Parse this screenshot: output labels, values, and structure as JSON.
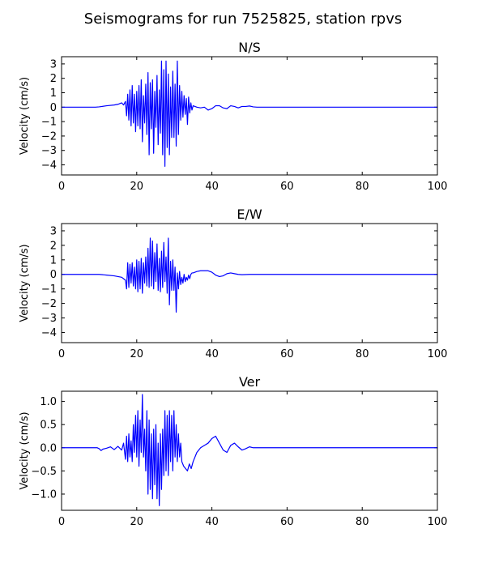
{
  "figure": {
    "title": "Seismograms for run 7525825, station rpvs"
  },
  "chart_data": [
    {
      "type": "line",
      "title": "N/S",
      "xlabel": "",
      "ylabel": "Velocity (cm/s)",
      "xlim": [
        0,
        100
      ],
      "ylim": [
        -4.7,
        3.5
      ],
      "xticks": [
        0,
        20,
        40,
        60,
        80,
        100
      ],
      "yticks": [
        3,
        2,
        1,
        0,
        -1,
        -2,
        -3,
        -4
      ],
      "ytick_labels": [
        "3",
        "2",
        "1",
        "0",
        "−1",
        "−2",
        "−3",
        "−4"
      ],
      "grid": false,
      "line_color": "#0000ff",
      "series": [
        {
          "x": [
            0,
            5,
            9,
            10,
            12,
            14,
            15,
            16,
            16.5,
            17,
            17.3,
            17.6,
            17.9,
            18.2,
            18.5,
            18.8,
            19.1,
            19.4,
            19.7,
            20,
            20.3,
            20.6,
            20.9,
            21.2,
            21.5,
            21.8,
            22.1,
            22.4,
            22.7,
            23,
            23.3,
            23.6,
            23.9,
            24.2,
            24.5,
            24.8,
            25.1,
            25.4,
            25.7,
            26,
            26.3,
            26.6,
            26.9,
            27.2,
            27.5,
            27.8,
            28.1,
            28.4,
            28.7,
            29,
            29.3,
            29.6,
            29.9,
            30.2,
            30.5,
            30.8,
            31.1,
            31.4,
            31.7,
            32,
            32.3,
            32.6,
            32.9,
            33.2,
            33.5,
            33.8,
            34.1,
            34.4,
            34.7,
            35,
            35.5,
            36,
            37,
            38,
            39,
            40,
            41,
            42,
            43,
            44,
            45,
            46,
            47,
            48,
            49,
            50,
            51,
            52,
            53,
            55,
            60,
            70,
            80,
            90,
            100
          ],
          "y": [
            0,
            0,
            0,
            0.02,
            0.1,
            0.15,
            0.2,
            0.3,
            0.15,
            0.4,
            -0.6,
            0.9,
            -0.9,
            1.2,
            -1.3,
            1.5,
            -1.1,
            0.9,
            -1.7,
            1.1,
            -1.3,
            1.5,
            -1.5,
            1.9,
            -2.4,
            0.8,
            -1.1,
            1.6,
            -1.9,
            2.4,
            -3.3,
            1.7,
            -1.5,
            1.9,
            -3.2,
            1.1,
            -1.4,
            2.2,
            -2.6,
            1.2,
            -1.8,
            3.2,
            -3.3,
            2.6,
            -4.1,
            3.2,
            -2.8,
            2.3,
            -3.3,
            1.4,
            -2.1,
            2.5,
            -2.1,
            1.6,
            -2.7,
            3.2,
            -1.9,
            1.5,
            -0.9,
            1.1,
            -0.7,
            0.8,
            -0.5,
            0.6,
            -1.2,
            0.7,
            -0.4,
            0.3,
            -0.2,
            0.1,
            0.05,
            0,
            -0.05,
            0,
            -0.2,
            -0.1,
            0.1,
            0.1,
            -0.05,
            -0.1,
            0.1,
            0.05,
            -0.05,
            0.05,
            0.05,
            0.08,
            0.02,
            0,
            0,
            0,
            0,
            0,
            0,
            0,
            0
          ]
        }
      ]
    },
    {
      "type": "line",
      "title": "E/W",
      "xlabel": "",
      "ylabel": "Velocity (cm/s)",
      "xlim": [
        0,
        100
      ],
      "ylim": [
        -4.7,
        3.5
      ],
      "xticks": [
        0,
        20,
        40,
        60,
        80,
        100
      ],
      "yticks": [
        3,
        2,
        1,
        0,
        -1,
        -2,
        -3,
        -4
      ],
      "ytick_labels": [
        "3",
        "2",
        "1",
        "0",
        "−1",
        "−2",
        "−3",
        "−4"
      ],
      "grid": false,
      "line_color": "#0000ff",
      "series": [
        {
          "x": [
            0,
            5,
            10,
            12,
            14,
            15,
            16,
            16.5,
            17,
            17.3,
            17.6,
            17.9,
            18.2,
            18.5,
            18.8,
            19.1,
            19.4,
            19.7,
            20,
            20.3,
            20.6,
            20.9,
            21.2,
            21.5,
            21.8,
            22.1,
            22.4,
            22.7,
            23,
            23.3,
            23.6,
            23.9,
            24.2,
            24.5,
            24.8,
            25.1,
            25.4,
            25.7,
            26,
            26.3,
            26.6,
            26.9,
            27.2,
            27.5,
            27.8,
            28.1,
            28.4,
            28.7,
            29,
            29.3,
            29.6,
            29.9,
            30.2,
            30.5,
            30.8,
            31.1,
            31.4,
            31.7,
            32,
            32.3,
            32.6,
            32.9,
            33.2,
            33.5,
            33.8,
            34.1,
            34.4,
            34.7,
            35,
            36,
            37,
            38,
            39,
            40,
            41,
            42,
            43,
            44,
            45,
            46,
            47,
            48,
            50,
            55,
            60,
            70,
            80,
            90,
            100
          ],
          "y": [
            0,
            0,
            0,
            -0.05,
            -0.1,
            -0.15,
            -0.2,
            -0.3,
            -0.4,
            -1.0,
            0.8,
            -0.9,
            0.7,
            -0.6,
            0.8,
            -0.8,
            0.5,
            -1.0,
            1.0,
            -1.2,
            0.9,
            -1.0,
            1.1,
            -1.3,
            0.8,
            -0.6,
            1.2,
            -0.8,
            1.8,
            -0.9,
            2.5,
            -0.8,
            2.3,
            -1.0,
            1.5,
            -0.5,
            2.1,
            -1.1,
            1.1,
            -1.2,
            1.6,
            -0.9,
            2.2,
            -0.5,
            1.2,
            -1.3,
            2.5,
            -2.1,
            0.9,
            -1.1,
            1.0,
            -1.1,
            0.5,
            -2.6,
            0.1,
            -1.0,
            0.2,
            -0.7,
            -0.2,
            -0.6,
            0,
            -0.5,
            -0.2,
            -0.4,
            -0.05,
            -0.3,
            0.0,
            0.1,
            0.1,
            0.2,
            0.25,
            0.25,
            0.25,
            0.15,
            -0.05,
            -0.15,
            -0.1,
            0.05,
            0.1,
            0.05,
            0,
            -0.02,
            0,
            0,
            0,
            0,
            0,
            0,
            0
          ]
        }
      ]
    },
    {
      "type": "line",
      "title": "Ver",
      "xlabel": "",
      "ylabel": "Velocity (cm/s)",
      "xlim": [
        0,
        100
      ],
      "ylim": [
        -1.35,
        1.22
      ],
      "xticks": [
        0,
        20,
        40,
        60,
        80,
        100
      ],
      "yticks": [
        1.0,
        0.5,
        0.0,
        -0.5,
        -1.0
      ],
      "ytick_labels": [
        "1.0",
        "0.5",
        "0.0",
        "−0.5",
        "−1.0"
      ],
      "grid": false,
      "line_color": "#0000ff",
      "series": [
        {
          "x": [
            0,
            5,
            9.5,
            10,
            10.5,
            11,
            12,
            13,
            14,
            15,
            16,
            16.5,
            17,
            17.3,
            17.6,
            17.9,
            18.2,
            18.5,
            18.8,
            19.1,
            19.4,
            19.7,
            20,
            20.3,
            20.6,
            20.9,
            21.2,
            21.5,
            21.8,
            22.1,
            22.4,
            22.7,
            23,
            23.3,
            23.6,
            23.9,
            24.2,
            24.5,
            24.8,
            25.1,
            25.4,
            25.7,
            26,
            26.3,
            26.6,
            26.9,
            27.2,
            27.5,
            27.8,
            28.1,
            28.4,
            28.7,
            29,
            29.3,
            29.6,
            29.9,
            30.2,
            30.5,
            30.8,
            31.1,
            31.4,
            31.7,
            32,
            32.5,
            33,
            33.5,
            34,
            34.5,
            35,
            36,
            37,
            38,
            39,
            40,
            41,
            42,
            43,
            44,
            45,
            46,
            47,
            48,
            49,
            50,
            51,
            52,
            55,
            60,
            70,
            80,
            90,
            100
          ],
          "y": [
            0,
            0,
            0,
            -0.02,
            -0.06,
            -0.03,
            -0.01,
            0.02,
            -0.04,
            0.03,
            -0.05,
            0.1,
            -0.25,
            0.25,
            -0.3,
            0.3,
            -0.2,
            0.15,
            -0.3,
            0.5,
            -0.1,
            0.7,
            -0.2,
            0.8,
            -0.4,
            0.6,
            -0.1,
            1.15,
            -0.2,
            0.4,
            -0.5,
            0.8,
            -1.0,
            0.6,
            -0.9,
            0.3,
            -1.1,
            0.4,
            -0.8,
            0.5,
            -1.1,
            0.1,
            -1.25,
            0.3,
            -0.9,
            0.4,
            -0.6,
            0.8,
            -0.5,
            0.7,
            -0.6,
            0.8,
            -0.3,
            0.7,
            -0.5,
            0.8,
            -0.2,
            0.5,
            -0.3,
            0.3,
            -0.2,
            0.1,
            -0.3,
            -0.4,
            -0.45,
            -0.5,
            -0.35,
            -0.45,
            -0.3,
            -0.1,
            0.0,
            0.05,
            0.1,
            0.2,
            0.25,
            0.1,
            -0.05,
            -0.1,
            0.05,
            0.1,
            0.02,
            -0.05,
            -0.02,
            0.02,
            0,
            0,
            0,
            0,
            0,
            0,
            0,
            0
          ]
        }
      ]
    }
  ]
}
